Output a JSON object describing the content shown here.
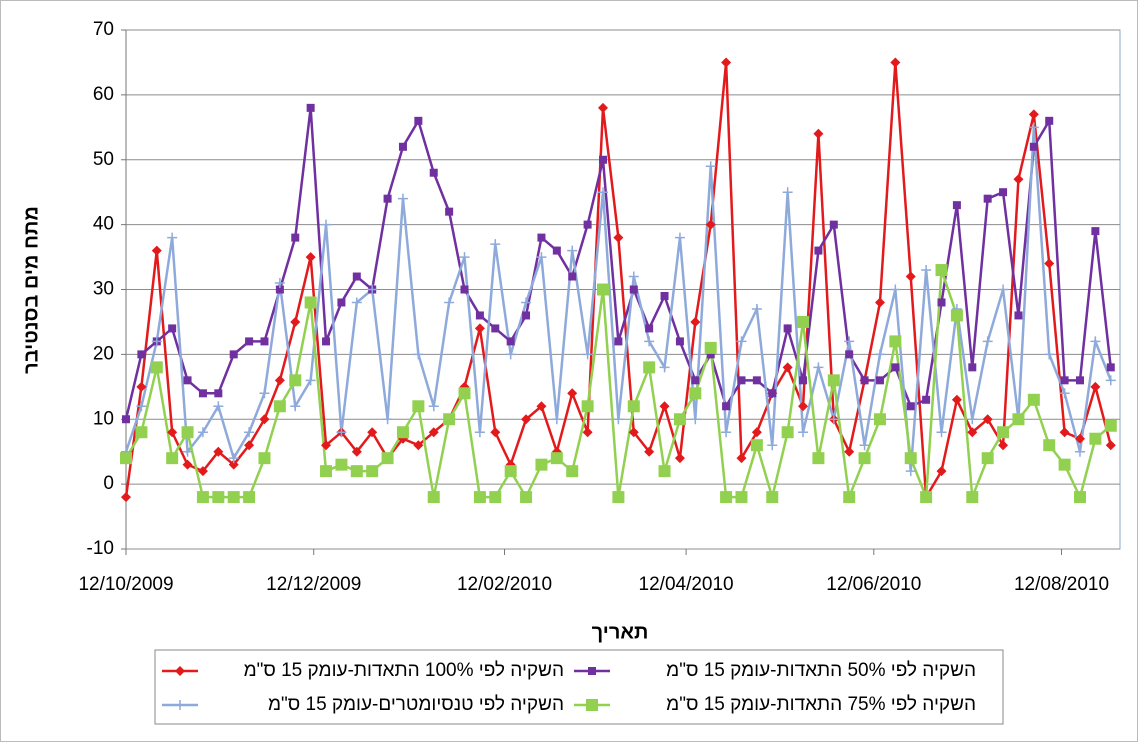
{
  "chart_data": {
    "type": "line",
    "y_label": "מתח מים בסנטיבר",
    "x_label": "תאריך",
    "ylim": [
      -10,
      70
    ],
    "yticks": [
      -10,
      0,
      10,
      20,
      30,
      40,
      50,
      60,
      70
    ],
    "grid": true,
    "xlim": [
      "12/10/2009",
      "31/08/2010"
    ],
    "xticks": [
      "12/10/2009",
      "12/12/2009",
      "12/02/2010",
      "12/04/2010",
      "12/06/2010",
      "12/08/2010"
    ],
    "x": [
      "12/10/2009",
      "17/10/2009",
      "22/10/2009",
      "27/10/2009",
      "01/11/2009",
      "06/11/2009",
      "11/11/2009",
      "16/11/2009",
      "21/11/2009",
      "26/11/2009",
      "01/12/2009",
      "06/12/2009",
      "11/12/2009",
      "16/12/2009",
      "21/12/2009",
      "26/12/2009",
      "31/12/2009",
      "05/01/2010",
      "10/01/2010",
      "15/01/2010",
      "20/01/2010",
      "25/01/2010",
      "30/01/2010",
      "04/02/2010",
      "09/02/2010",
      "14/02/2010",
      "19/02/2010",
      "24/02/2010",
      "01/03/2010",
      "06/03/2010",
      "11/03/2010",
      "16/03/2010",
      "21/03/2010",
      "26/03/2010",
      "31/03/2010",
      "05/04/2010",
      "10/04/2010",
      "15/04/2010",
      "20/04/2010",
      "25/04/2010",
      "30/04/2010",
      "05/05/2010",
      "10/05/2010",
      "15/05/2010",
      "20/05/2010",
      "25/05/2010",
      "30/05/2010",
      "04/06/2010",
      "09/06/2010",
      "14/06/2010",
      "19/06/2010",
      "24/06/2010",
      "29/06/2010",
      "04/07/2010",
      "09/07/2010",
      "14/07/2010",
      "19/07/2010",
      "24/07/2010",
      "29/07/2010",
      "03/08/2010",
      "08/08/2010",
      "13/08/2010",
      "18/08/2010",
      "23/08/2010",
      "28/08/2010"
    ],
    "series": [
      {
        "name": "השקיה לפי 100% התאדות-עומק 15 ס\"מ",
        "color": "#e31a1c",
        "marker": "diamond",
        "values": [
          -2,
          15,
          36,
          8,
          3,
          2,
          5,
          3,
          6,
          10,
          16,
          25,
          35,
          6,
          8,
          5,
          8,
          4,
          7,
          6,
          8,
          10,
          15,
          24,
          8,
          3,
          10,
          12,
          5,
          14,
          8,
          58,
          38,
          8,
          5,
          12,
          4,
          25,
          40,
          65,
          4,
          8,
          14,
          18,
          12,
          54,
          10,
          5,
          16,
          28,
          65,
          32,
          -2,
          2,
          13,
          8,
          10,
          6,
          47,
          57,
          34,
          8,
          7,
          15,
          6
        ]
      },
      {
        "name": "השקיה לפי 50% התאדות-עומק 15 ס\"מ",
        "color": "#7030a0",
        "marker": "square",
        "values": [
          10,
          20,
          22,
          24,
          16,
          14,
          14,
          20,
          22,
          22,
          30,
          38,
          58,
          22,
          28,
          32,
          30,
          44,
          52,
          56,
          48,
          42,
          30,
          26,
          24,
          22,
          26,
          38,
          36,
          32,
          40,
          50,
          22,
          30,
          24,
          29,
          22,
          16,
          20,
          12,
          16,
          16,
          14,
          24,
          16,
          36,
          40,
          20,
          16,
          16,
          18,
          12,
          13,
          28,
          43,
          18,
          44,
          45,
          26,
          52,
          56,
          16,
          16,
          39,
          18
        ]
      },
      {
        "name": "השקיה לפי טנסיומטרים-עומק 15 ס\"מ",
        "color": "#8eaadb",
        "marker": "plus",
        "values": [
          5,
          12,
          22,
          38,
          5,
          8,
          12,
          4,
          8,
          14,
          31,
          12,
          16,
          40,
          8,
          28,
          30,
          10,
          44,
          20,
          12,
          28,
          35,
          8,
          37,
          20,
          28,
          35,
          10,
          36,
          20,
          45,
          10,
          32,
          22,
          18,
          38,
          10,
          49,
          8,
          22,
          27,
          6,
          45,
          8,
          18,
          10,
          22,
          6,
          20,
          30,
          2,
          33,
          8,
          27,
          10,
          22,
          30,
          10,
          55,
          20,
          14,
          5,
          22,
          16
        ]
      },
      {
        "name": "השקיה לפי 75% התאדות-עומק 15 ס\"מ",
        "color": "#92d050",
        "marker": "bigsquare",
        "values": [
          4,
          8,
          18,
          4,
          8,
          -2,
          -2,
          -2,
          -2,
          4,
          12,
          16,
          28,
          2,
          3,
          2,
          2,
          4,
          8,
          12,
          -2,
          10,
          14,
          -2,
          -2,
          2,
          -2,
          3,
          4,
          2,
          12,
          30,
          -2,
          12,
          18,
          2,
          10,
          14,
          21,
          -2,
          -2,
          6,
          -2,
          8,
          25,
          4,
          16,
          -2,
          4,
          10,
          22,
          4,
          -2,
          33,
          26,
          -2,
          4,
          8,
          10,
          13,
          6,
          3,
          -2,
          7,
          9
        ]
      }
    ]
  }
}
